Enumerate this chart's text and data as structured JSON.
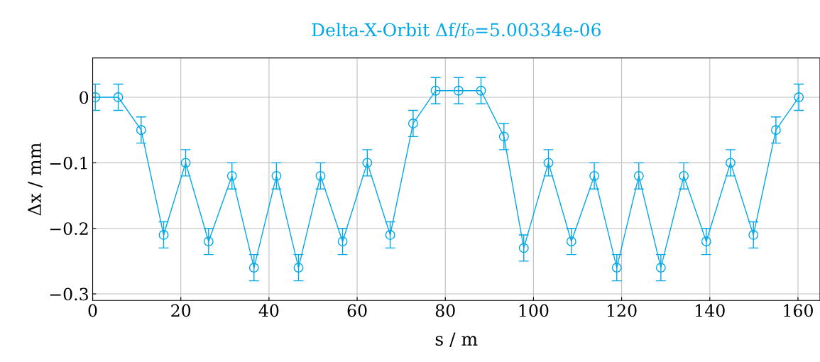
{
  "chart_data": {
    "type": "line",
    "title": "Delta-X-Orbit Δf/f₀=5.00334e-06",
    "xlabel": "s / m",
    "ylabel": "Δx / mm",
    "x": [
      0.6,
      5.8,
      11.0,
      16.1,
      21.1,
      26.3,
      31.6,
      36.6,
      41.7,
      46.7,
      51.7,
      56.7,
      62.3,
      67.5,
      72.7,
      77.8,
      83.0,
      88.1,
      93.3,
      97.8,
      103.4,
      108.6,
      113.8,
      118.9,
      123.9,
      128.9,
      134.1,
      139.2,
      144.7,
      149.9,
      155.0,
      160.2
    ],
    "series": [
      {
        "color": "#00a8e8",
        "values": [
          0,
          0,
          -0.05,
          -0.21,
          -0.1,
          -0.22,
          -0.12,
          -0.26,
          -0.12,
          -0.26,
          -0.12,
          -0.22,
          -0.1,
          -0.21,
          -0.04,
          0.01,
          0.01,
          0.01,
          -0.06,
          -0.23,
          -0.1,
          -0.22,
          -0.12,
          -0.26,
          -0.12,
          -0.26,
          -0.12,
          -0.22,
          -0.1,
          -0.21,
          -0.05,
          0
        ],
        "errors": [
          0.02,
          0.02,
          0.02,
          0.02,
          0.02,
          0.02,
          0.02,
          0.02,
          0.02,
          0.02,
          0.02,
          0.02,
          0.02,
          0.02,
          0.02,
          0.02,
          0.02,
          0.02,
          0.02,
          0.02,
          0.02,
          0.02,
          0.02,
          0.02,
          0.02,
          0.02,
          0.02,
          0.02,
          0.02,
          0.02,
          0.02,
          0.02
        ]
      }
    ],
    "xlim": [
      0,
      165
    ],
    "xticks": [
      0,
      20,
      40,
      60,
      80,
      100,
      120,
      140,
      160
    ],
    "ylim": [
      -0.31,
      0.06
    ],
    "yticks": [
      0,
      {
        "value": -0.1,
        "label": "−0.1"
      },
      {
        "value": -0.2,
        "label": "−0.2"
      },
      {
        "value": -0.3,
        "label": "−0.3"
      }
    ],
    "grid": true,
    "marker": "circle",
    "line_style": "solid",
    "legend": false
  }
}
